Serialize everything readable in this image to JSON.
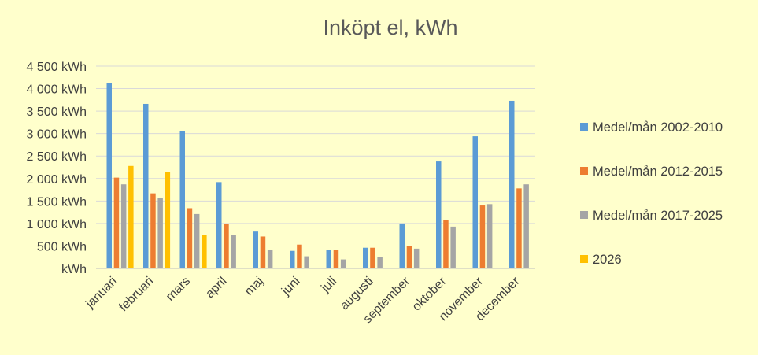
{
  "chart_data": {
    "type": "bar",
    "title": "Inköpt el, kWh",
    "categories": [
      "januari",
      "februari",
      "mars",
      "april",
      "maj",
      "juni",
      "juli",
      "augusti",
      "september",
      "oktober",
      "november",
      "december"
    ],
    "series": [
      {
        "name": "Medel/mån 2002-2010",
        "color": "#5B9BD5",
        "values": [
          4130,
          3660,
          3060,
          1920,
          820,
          390,
          410,
          460,
          1000,
          2380,
          2940,
          3730
        ]
      },
      {
        "name": "Medel/mån 2012-2015",
        "color": "#ED7D31",
        "values": [
          2020,
          1670,
          1340,
          990,
          710,
          530,
          420,
          460,
          500,
          1080,
          1400,
          1780
        ]
      },
      {
        "name": "Medel/mån 2017-2025",
        "color": "#A5A5A5",
        "values": [
          1870,
          1570,
          1210,
          740,
          420,
          270,
          200,
          260,
          440,
          930,
          1430,
          1870
        ]
      },
      {
        "name": "2026",
        "color": "#FFC000",
        "values": [
          2280,
          2150,
          740,
          null,
          null,
          null,
          null,
          null,
          null,
          null,
          null,
          null
        ]
      }
    ],
    "ylim": [
      0,
      4500
    ],
    "yticks": [
      0,
      500,
      1000,
      1500,
      2000,
      2500,
      3000,
      3500,
      4000,
      4500
    ],
    "ytick_labels": [
      "kWh",
      "500  kWh",
      "1 000  kWh",
      "1 500  kWh",
      "2 000  kWh",
      "2 500  kWh",
      "3 000  kWh",
      "3 500  kWh",
      "4 000  kWh",
      "4 500  kWh"
    ],
    "xlabel": "",
    "ylabel": "",
    "grid": true,
    "legend_position": "right"
  }
}
